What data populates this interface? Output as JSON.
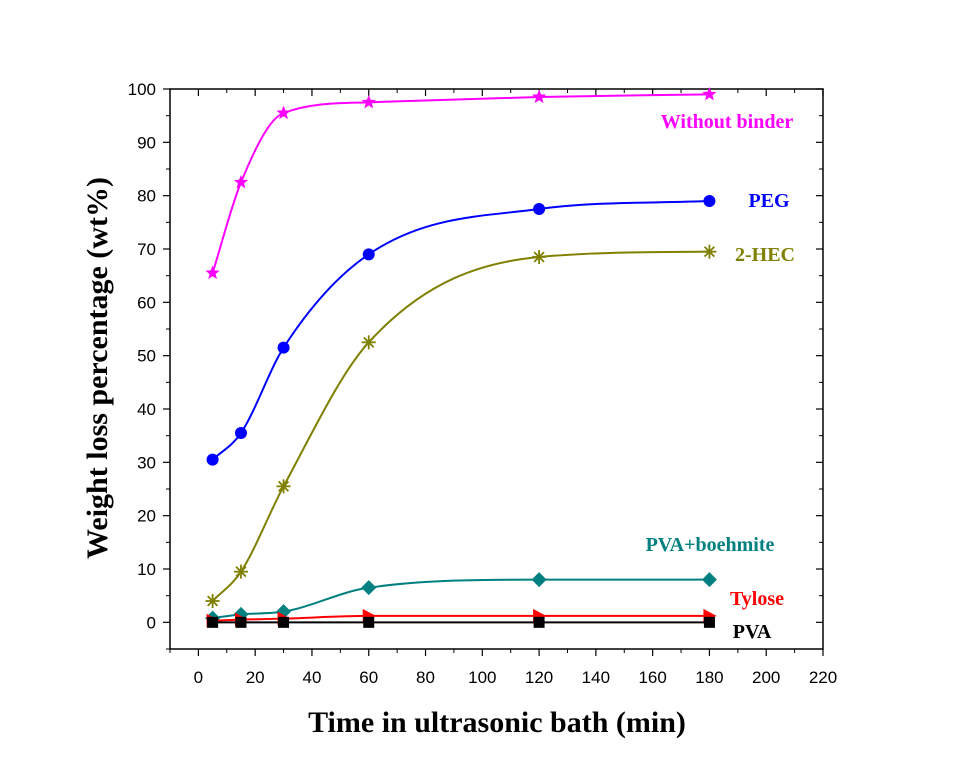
{
  "chart_data": {
    "type": "line",
    "xlabel": "Time in ultrasonic bath (min)",
    "ylabel": "Weight loss percentage (wt%)",
    "xlim": [
      -10,
      220
    ],
    "ylim": [
      -5,
      100
    ],
    "xticks": [
      0,
      20,
      40,
      60,
      80,
      100,
      120,
      140,
      160,
      180,
      200,
      220
    ],
    "yticks": [
      0,
      10,
      20,
      30,
      40,
      50,
      60,
      70,
      80,
      90,
      100
    ],
    "grid": false,
    "legend": "inline labels at right end of each series",
    "x": [
      5,
      15,
      30,
      60,
      120,
      180
    ],
    "series": [
      {
        "name": "Without binder",
        "marker": "star",
        "color": "#ff00ff",
        "values": [
          65.5,
          82.5,
          95.5,
          97.5,
          98.5,
          99
        ]
      },
      {
        "name": "PEG",
        "marker": "circle",
        "color": "#0000ff",
        "values": [
          30.5,
          35.5,
          51.5,
          69,
          77.5,
          79
        ]
      },
      {
        "name": "2-HEC",
        "marker": "asterisk",
        "color": "#808000",
        "values": [
          4,
          9.5,
          25.5,
          52.5,
          68.5,
          69.5
        ]
      },
      {
        "name": "PVA+boehmite",
        "marker": "diamond",
        "color": "#008080",
        "values": [
          0.8,
          1.5,
          2,
          6.5,
          8,
          8
        ]
      },
      {
        "name": "Tylose",
        "marker": "triangle-right",
        "color": "#ff0000",
        "values": [
          0.3,
          0.5,
          0.7,
          1.2,
          1.2,
          1.2
        ]
      },
      {
        "name": "PVA",
        "marker": "square",
        "color": "#000000",
        "values": [
          0,
          0,
          0,
          0,
          0,
          0
        ]
      }
    ]
  }
}
